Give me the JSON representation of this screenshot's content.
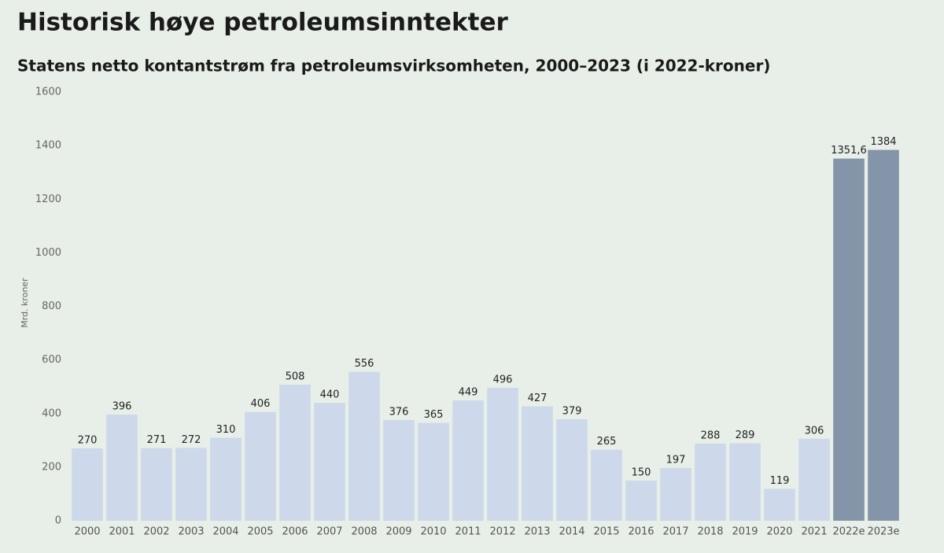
{
  "chart_data": {
    "type": "bar",
    "title": "Historisk høye petroleumsinntekter",
    "subtitle": "Statens netto kontantstrøm fra petroleumsvirksomheten, 2000–2023 (i 2022-kroner)",
    "y_label": "Mrd. kroner",
    "categories": [
      "2000",
      "2001",
      "2002",
      "2003",
      "2004",
      "2005",
      "2006",
      "2007",
      "2008",
      "2009",
      "2010",
      "2011",
      "2012",
      "2013",
      "2014",
      "2015",
      "2016",
      "2017",
      "2018",
      "2019",
      "2020",
      "2021",
      "2022e",
      "2023e"
    ],
    "values": [
      270,
      396,
      271,
      272,
      310,
      406,
      508,
      440,
      556,
      376,
      365,
      449,
      496,
      427,
      379,
      265,
      150,
      197,
      288,
      289,
      119,
      306,
      1351.6,
      1384
    ],
    "value_labels": [
      "270",
      "396",
      "271",
      "272",
      "310",
      "406",
      "508",
      "440",
      "556",
      "376",
      "365",
      "449",
      "496",
      "427",
      "379",
      "265",
      "150",
      "197",
      "288",
      "289",
      "119",
      "306",
      "1351,6",
      "1384"
    ],
    "colors": [
      "#cdd8ea",
      "#cdd8ea",
      "#cdd8ea",
      "#cdd8ea",
      "#cdd8ea",
      "#cdd8ea",
      "#cdd8ea",
      "#cdd8ea",
      "#cdd8ea",
      "#cdd8ea",
      "#cdd8ea",
      "#cdd8ea",
      "#cdd8ea",
      "#cdd8ea",
      "#cdd8ea",
      "#cdd8ea",
      "#cdd8ea",
      "#cdd8ea",
      "#cdd8ea",
      "#cdd8ea",
      "#cdd8ea",
      "#cdd8ea",
      "#8494a9",
      "#8494a9"
    ],
    "ylim": [
      0,
      1600
    ],
    "yticks": [
      0,
      200,
      400,
      600,
      800,
      1000,
      1200,
      1400,
      1600
    ],
    "grid": false
  }
}
